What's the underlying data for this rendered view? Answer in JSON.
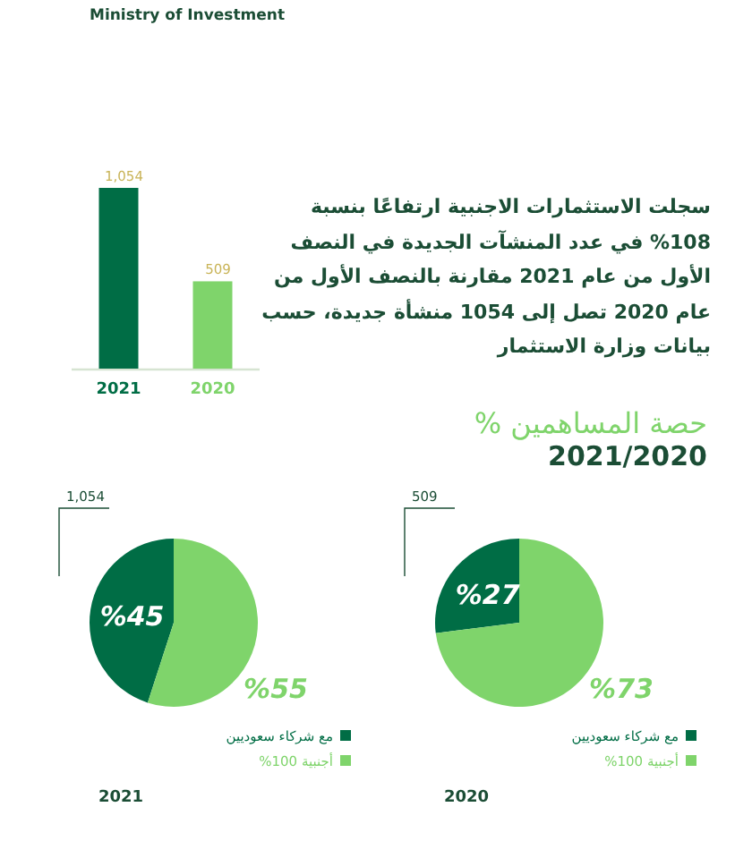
{
  "chart_data": [
    {
      "type": "bar",
      "categories": [
        "2021",
        "2020"
      ],
      "values": [
        1054,
        509
      ],
      "colors": [
        "#006d45",
        "#7fd46b"
      ],
      "value_labels": [
        "1,054",
        "509"
      ],
      "annotations": [
        "Ministry of Investment",
        "سجلت الاستثمارات الاجنبية ارتفاعًا بنسبة 108% في عدد المنشآت الجديدة في النصف الأول من عام 2021 مقارنة بالنصف الأول من عام 2020 تصل إلى 1054 منشأة جديدة، حسب بيانات وزارة الاستثمار"
      ]
    },
    {
      "type": "pie",
      "xlabel": "2021",
      "categories": [
        "مع شركاء سعوديين",
        "أجنبية 100%"
      ],
      "values": [
        45,
        55
      ],
      "colors": [
        "#006d45",
        "#7fd46b"
      ],
      "value_labels": [
        "%45",
        "%55"
      ],
      "legend": "bottom right",
      "annotations": [
        "1,054"
      ]
    },
    {
      "type": "pie",
      "title": "حصة المساهمين %",
      "subtitle": "2021/2020",
      "xlabel": "2020",
      "categories": [
        "مع شركاء سعوديين",
        "أجنبية 100%"
      ],
      "values": [
        27,
        73
      ],
      "colors": [
        "#006d45",
        "#7fd46b"
      ],
      "value_labels": [
        "%27",
        "%73"
      ],
      "legend": "bottom right",
      "annotations": [
        "509"
      ]
    }
  ]
}
